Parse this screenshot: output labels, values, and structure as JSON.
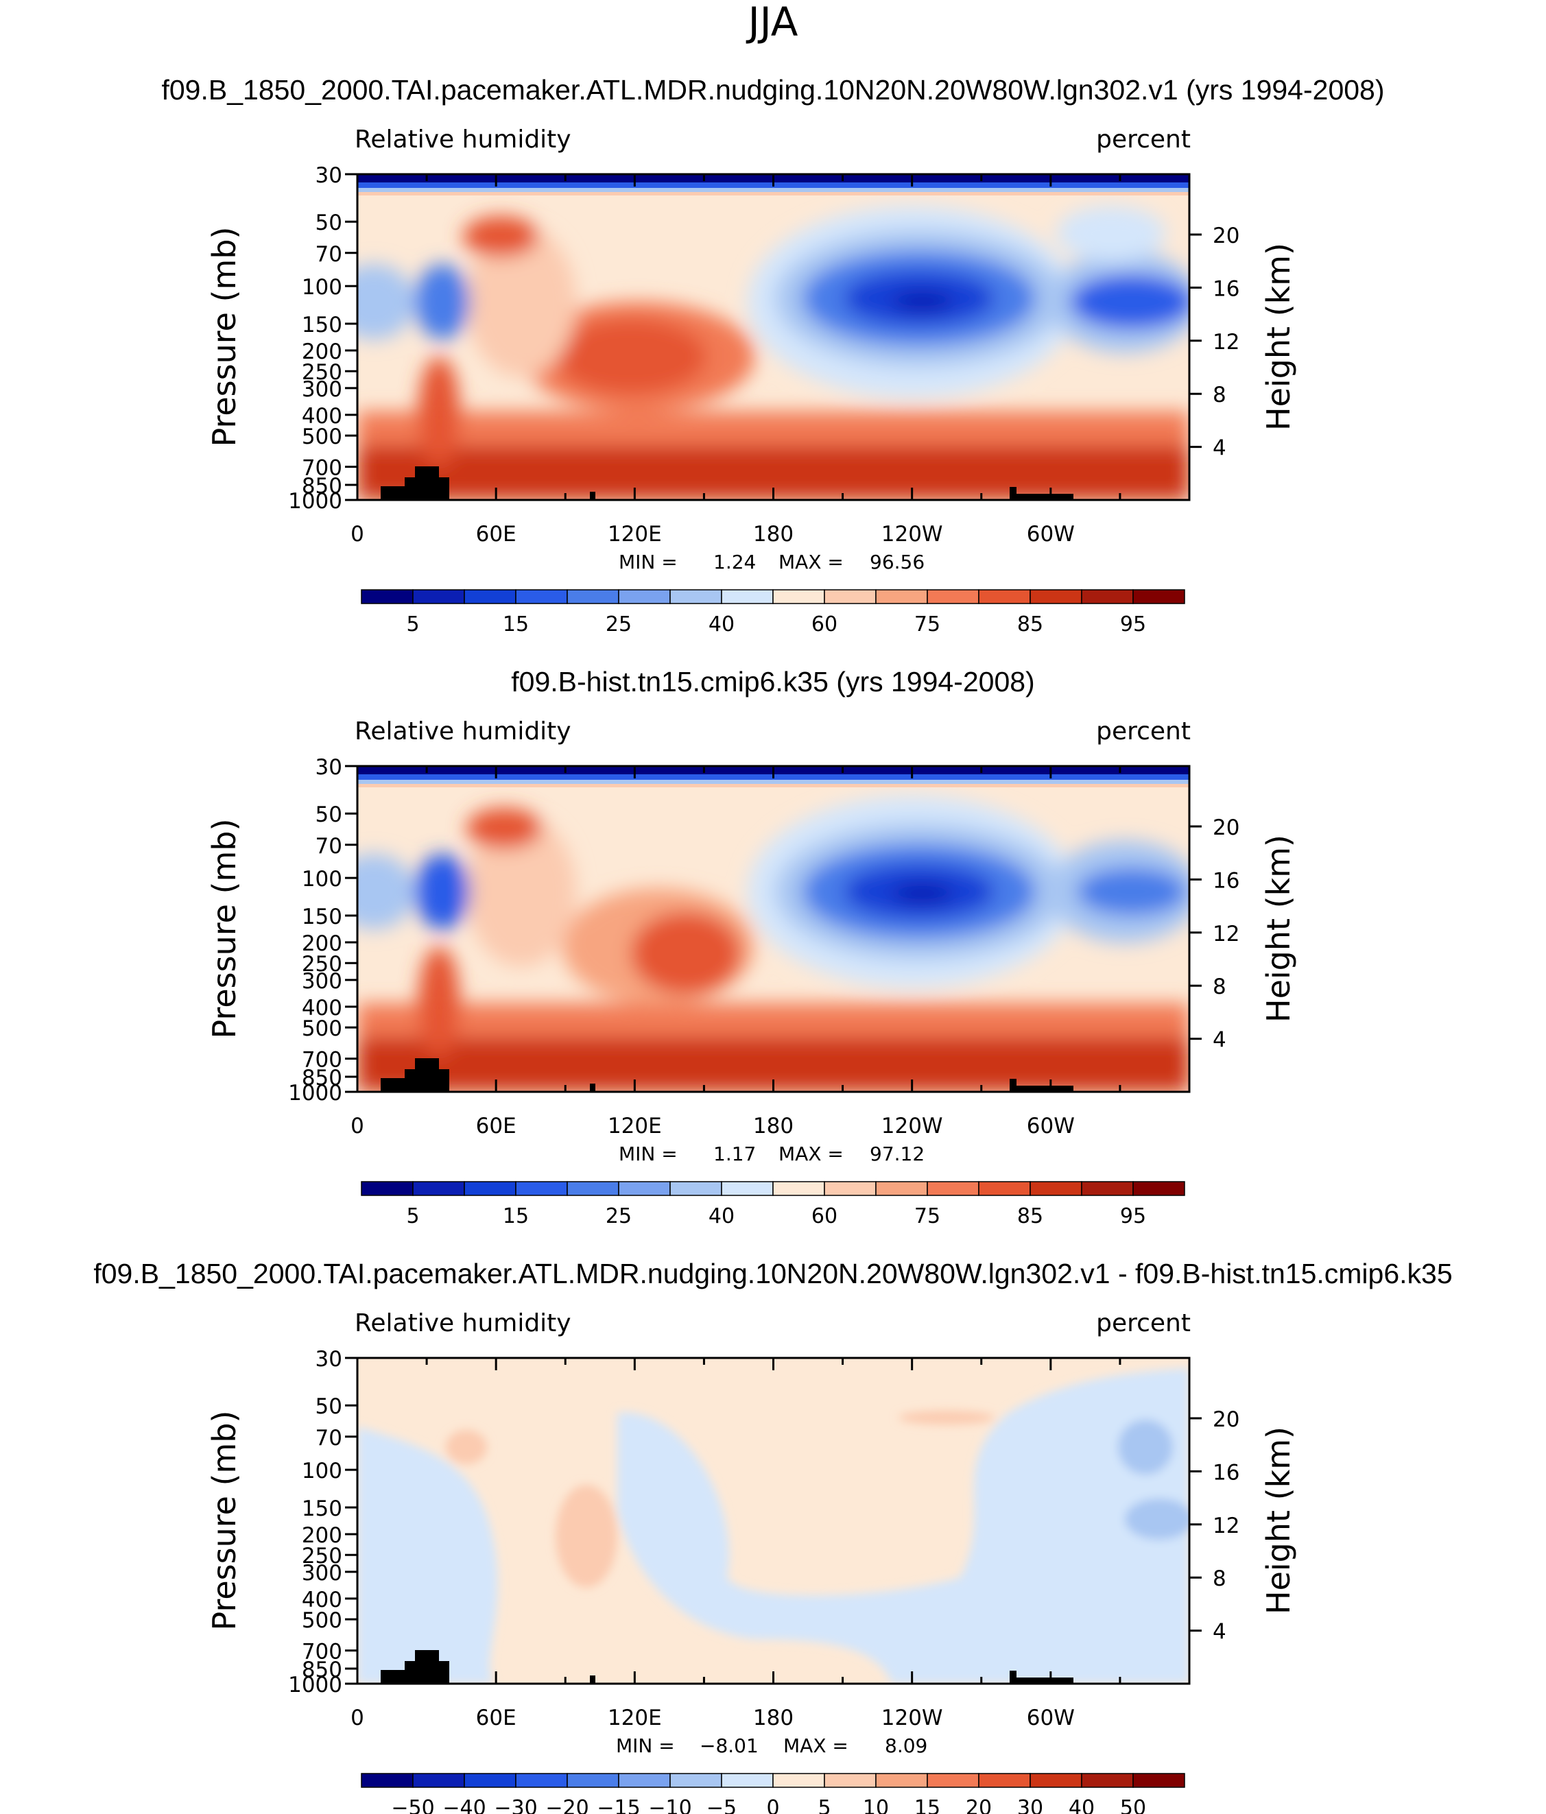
{
  "page_title": "JJA",
  "chart_data": [
    {
      "type": "heatmap",
      "title": "f09.B_1850_2000.TAI.pacemaker.ATL.MDR.nudging.10N20N.20W80W.lgn302.v1 (yrs 1994-2008)",
      "left_label": "Relative  humidity",
      "right_label": "percent",
      "ylabel": "Pressure  (mb)",
      "y2label": "Height  (km)",
      "x_ticks": [
        "0",
        "60E",
        "120E",
        "180",
        "120W",
        "60W"
      ],
      "y_ticks": [
        "30",
        "50",
        "70",
        "100",
        "150",
        "200",
        "250",
        "300",
        "400",
        "500",
        "700",
        "850",
        "1000"
      ],
      "y2_ticks": [
        "20",
        "16",
        "12",
        "8",
        "4"
      ],
      "min_label": "MIN =",
      "min": "1.24",
      "max_label": "MAX =",
      "max": "96.56",
      "colorbar_labels": [
        "5",
        "15",
        "25",
        "40",
        "60",
        "75",
        "85",
        "95"
      ],
      "colors": [
        "#00007f",
        "#0b1fb3",
        "#1240d6",
        "#2a5ce8",
        "#4a7de9",
        "#7aa2ef",
        "#a8c6f2",
        "#d4e6fb",
        "#fde9d6",
        "#fbcbb0",
        "#f7a580",
        "#f27a55",
        "#e55530",
        "#cc3515",
        "#a61c0d",
        "#800000"
      ]
    },
    {
      "type": "heatmap",
      "title": "f09.B-hist.tn15.cmip6.k35 (yrs 1994-2008)",
      "left_label": "Relative  humidity",
      "right_label": "percent",
      "ylabel": "Pressure  (mb)",
      "y2label": "Height  (km)",
      "x_ticks": [
        "0",
        "60E",
        "120E",
        "180",
        "120W",
        "60W"
      ],
      "y_ticks": [
        "30",
        "50",
        "70",
        "100",
        "150",
        "200",
        "250",
        "300",
        "400",
        "500",
        "700",
        "850",
        "1000"
      ],
      "y2_ticks": [
        "20",
        "16",
        "12",
        "8",
        "4"
      ],
      "min_label": "MIN =",
      "min": "1.17",
      "max_label": "MAX =",
      "max": "97.12",
      "colorbar_labels": [
        "5",
        "15",
        "25",
        "40",
        "60",
        "75",
        "85",
        "95"
      ],
      "colors": [
        "#00007f",
        "#0b1fb3",
        "#1240d6",
        "#2a5ce8",
        "#4a7de9",
        "#7aa2ef",
        "#a8c6f2",
        "#d4e6fb",
        "#fde9d6",
        "#fbcbb0",
        "#f7a580",
        "#f27a55",
        "#e55530",
        "#cc3515",
        "#a61c0d",
        "#800000"
      ]
    },
    {
      "type": "heatmap",
      "title": "f09.B_1850_2000.TAI.pacemaker.ATL.MDR.nudging.10N20N.20W80W.lgn302.v1 - f09.B-hist.tn15.cmip6.k35",
      "left_label": "Relative  humidity",
      "right_label": "percent",
      "ylabel": "Pressure  (mb)",
      "y2label": "Height  (km)",
      "x_ticks": [
        "0",
        "60E",
        "120E",
        "180",
        "120W",
        "60W"
      ],
      "y_ticks": [
        "30",
        "50",
        "70",
        "100",
        "150",
        "200",
        "250",
        "300",
        "400",
        "500",
        "700",
        "850",
        "1000"
      ],
      "y2_ticks": [
        "20",
        "16",
        "12",
        "8",
        "4"
      ],
      "min_label": "MIN =",
      "min": "−8.01",
      "max_label": "MAX =",
      "max": "8.09",
      "colorbar_labels": [
        "−50",
        "−40",
        "−30",
        "−20",
        "−15",
        "−10",
        "−5",
        "0",
        "5",
        "10",
        "15",
        "20",
        "30",
        "40",
        "50"
      ],
      "colors": [
        "#00007f",
        "#0b1fb3",
        "#1240d6",
        "#2a5ce8",
        "#4a7de9",
        "#7aa2ef",
        "#a8c6f2",
        "#d4e6fb",
        "#fde9d6",
        "#fbcbb0",
        "#f7a580",
        "#f27a55",
        "#e55530",
        "#cc3515",
        "#a61c0d",
        "#800000"
      ]
    }
  ]
}
